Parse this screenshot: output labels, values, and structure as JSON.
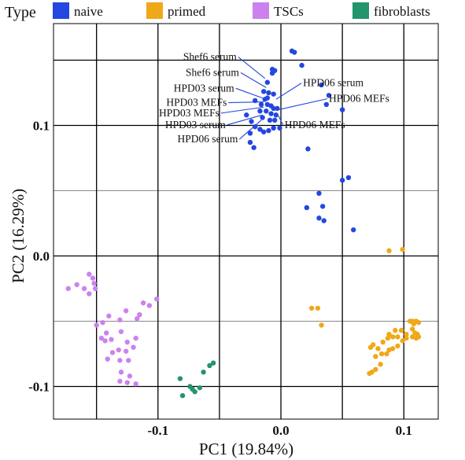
{
  "chart_data": {
    "type": "scatter",
    "title": "",
    "xlabel": "PC1 (19.84%)",
    "ylabel": "PC2 (16.29%)",
    "xlim": [
      -0.185,
      0.128
    ],
    "ylim": [
      -0.125,
      0.178
    ],
    "x_ticks": [
      {
        "value": -0.1,
        "label": "-0.1"
      },
      {
        "value": 0.0,
        "label": "0.0"
      },
      {
        "value": 0.1,
        "label": "0.1"
      }
    ],
    "y_ticks": [
      {
        "value": -0.1,
        "label": "-0.1"
      },
      {
        "value": 0.0,
        "label": "0.0"
      },
      {
        "value": 0.1,
        "label": "0.1"
      }
    ],
    "major_grid_x": [
      -0.15,
      -0.1,
      -0.05,
      0.0,
      0.05,
      0.1
    ],
    "major_grid_y": [
      -0.1,
      0.0,
      0.1,
      0.15
    ],
    "minor_grid_y": [
      -0.05,
      0.05
    ],
    "grid": true,
    "legend": {
      "title": "Type",
      "placement": "top",
      "entries": [
        {
          "label": "naive",
          "color": "#2347e0"
        },
        {
          "label": "primed",
          "color": "#f0a818"
        },
        {
          "label": "TSCs",
          "color": "#cc82ee"
        },
        {
          "label": "fibroblasts",
          "color": "#23956a"
        }
      ]
    },
    "series": [
      {
        "name": "naive",
        "color": "#2347e0",
        "points": [
          [
            0.009,
            0.157
          ],
          [
            0.011,
            0.156
          ],
          [
            -0.007,
            0.143
          ],
          [
            -0.005,
            0.142
          ],
          [
            -0.007,
            0.14
          ],
          [
            0.017,
            0.146
          ],
          [
            -0.011,
            0.133
          ],
          [
            -0.021,
            0.119
          ],
          [
            -0.014,
            0.126
          ],
          [
            -0.01,
            0.125
          ],
          [
            -0.013,
            0.12
          ],
          [
            -0.011,
            0.121
          ],
          [
            -0.006,
            0.124
          ],
          [
            -0.016,
            0.116
          ],
          [
            -0.011,
            0.116
          ],
          [
            -0.008,
            0.115
          ],
          [
            -0.006,
            0.113
          ],
          [
            -0.003,
            0.113
          ],
          [
            -0.017,
            0.111
          ],
          [
            -0.012,
            0.111
          ],
          [
            -0.008,
            0.109
          ],
          [
            -0.004,
            0.108
          ],
          [
            -0.015,
            0.106
          ],
          [
            -0.009,
            0.104
          ],
          [
            -0.005,
            0.104
          ],
          [
            -0.028,
            0.108
          ],
          [
            -0.024,
            0.103
          ],
          [
            -0.021,
            0.099
          ],
          [
            -0.017,
            0.097
          ],
          [
            -0.025,
            0.094
          ],
          [
            -0.014,
            0.095
          ],
          [
            -0.01,
            0.096
          ],
          [
            -0.006,
            0.098
          ],
          [
            -0.001,
            0.098
          ],
          [
            -0.025,
            0.087
          ],
          [
            -0.022,
            0.083
          ],
          [
            0.033,
            0.131
          ],
          [
            0.039,
            0.123
          ],
          [
            0.037,
            0.116
          ],
          [
            0.05,
            0.112
          ],
          [
            0.022,
            0.082
          ],
          [
            0.055,
            0.06
          ],
          [
            0.05,
            0.058
          ],
          [
            0.031,
            0.048
          ],
          [
            0.021,
            0.037
          ],
          [
            0.034,
            0.038
          ],
          [
            0.031,
            0.029
          ],
          [
            0.035,
            0.027
          ],
          [
            0.059,
            0.02
          ]
        ]
      },
      {
        "name": "primed",
        "color": "#f0a818",
        "points": [
          [
            0.088,
            0.004
          ],
          [
            0.099,
            0.005
          ],
          [
            0.025,
            -0.04
          ],
          [
            0.03,
            -0.04
          ],
          [
            0.033,
            -0.053
          ],
          [
            0.105,
            -0.05
          ],
          [
            0.107,
            -0.05
          ],
          [
            0.11,
            -0.05
          ],
          [
            0.108,
            -0.052
          ],
          [
            0.112,
            -0.051
          ],
          [
            0.107,
            -0.056
          ],
          [
            0.109,
            -0.059
          ],
          [
            0.111,
            -0.06
          ],
          [
            0.107,
            -0.062
          ],
          [
            0.11,
            -0.063
          ],
          [
            0.112,
            -0.062
          ],
          [
            0.093,
            -0.057
          ],
          [
            0.098,
            -0.057
          ],
          [
            0.102,
            -0.06
          ],
          [
            0.088,
            -0.06
          ],
          [
            0.091,
            -0.062
          ],
          [
            0.095,
            -0.062
          ],
          [
            0.099,
            -0.065
          ],
          [
            0.102,
            -0.063
          ],
          [
            0.087,
            -0.063
          ],
          [
            0.083,
            -0.066
          ],
          [
            0.095,
            -0.069
          ],
          [
            0.091,
            -0.071
          ],
          [
            0.088,
            -0.072
          ],
          [
            0.086,
            -0.075
          ],
          [
            0.082,
            -0.075
          ],
          [
            0.073,
            -0.07
          ],
          [
            0.075,
            -0.068
          ],
          [
            0.079,
            -0.071
          ],
          [
            0.077,
            -0.077
          ],
          [
            0.081,
            -0.083
          ],
          [
            0.077,
            -0.087
          ],
          [
            0.074,
            -0.089
          ],
          [
            0.072,
            -0.09
          ]
        ]
      },
      {
        "name": "TSCs",
        "color": "#cc82ee",
        "points": [
          [
            -0.156,
            -0.014
          ],
          [
            -0.153,
            -0.017
          ],
          [
            -0.166,
            -0.022
          ],
          [
            -0.16,
            -0.025
          ],
          [
            -0.152,
            -0.021
          ],
          [
            -0.156,
            -0.029
          ],
          [
            -0.151,
            -0.025
          ],
          [
            -0.173,
            -0.025
          ],
          [
            -0.101,
            -0.033
          ],
          [
            -0.107,
            -0.038
          ],
          [
            -0.112,
            -0.036
          ],
          [
            -0.115,
            -0.045
          ],
          [
            -0.117,
            -0.048
          ],
          [
            -0.126,
            -0.042
          ],
          [
            -0.131,
            -0.049
          ],
          [
            -0.14,
            -0.046
          ],
          [
            -0.145,
            -0.051
          ],
          [
            -0.15,
            -0.053
          ],
          [
            -0.13,
            -0.058
          ],
          [
            -0.142,
            -0.059
          ],
          [
            -0.138,
            -0.064
          ],
          [
            -0.146,
            -0.063
          ],
          [
            -0.143,
            -0.065
          ],
          [
            -0.118,
            -0.063
          ],
          [
            -0.125,
            -0.066
          ],
          [
            -0.12,
            -0.07
          ],
          [
            -0.132,
            -0.072
          ],
          [
            -0.126,
            -0.073
          ],
          [
            -0.137,
            -0.074
          ],
          [
            -0.141,
            -0.079
          ],
          [
            -0.131,
            -0.08
          ],
          [
            -0.124,
            -0.08
          ],
          [
            -0.13,
            -0.089
          ],
          [
            -0.123,
            -0.092
          ],
          [
            -0.118,
            -0.098
          ],
          [
            -0.125,
            -0.097
          ],
          [
            -0.131,
            -0.096
          ]
        ]
      },
      {
        "name": "fibroblasts",
        "color": "#23956a",
        "points": [
          [
            -0.055,
            -0.082
          ],
          [
            -0.058,
            -0.084
          ],
          [
            -0.063,
            -0.089
          ],
          [
            -0.082,
            -0.094
          ],
          [
            -0.074,
            -0.1
          ],
          [
            -0.072,
            -0.102
          ],
          [
            -0.07,
            -0.104
          ],
          [
            -0.066,
            -0.101
          ],
          [
            -0.08,
            -0.107
          ]
        ]
      }
    ],
    "annotations": [
      {
        "text": "Shef6 serum",
        "label_at": [
          -0.036,
          0.15
        ],
        "point": [
          -0.013,
          0.136
        ]
      },
      {
        "text": "Shef6 serum",
        "label_at": [
          -0.034,
          0.138
        ],
        "point": [
          -0.012,
          0.129
        ]
      },
      {
        "text": "HPD03 serum",
        "label_at": [
          -0.038,
          0.126
        ],
        "point": [
          -0.015,
          0.121
        ]
      },
      {
        "text": "HPD03 MEFs",
        "label_at": [
          -0.044,
          0.115
        ],
        "point": [
          -0.014,
          0.118
        ]
      },
      {
        "text": "HPD03 MEFs",
        "label_at": [
          -0.05,
          0.107
        ],
        "point": [
          -0.014,
          0.114
        ]
      },
      {
        "text": "HPD03 serum",
        "label_at": [
          -0.045,
          0.098
        ],
        "point": [
          -0.015,
          0.108
        ]
      },
      {
        "text": "HPD06 serum",
        "label_at": [
          -0.035,
          0.087
        ],
        "point": [
          -0.016,
          0.104
        ]
      },
      {
        "text": "HPD06 serum",
        "label_at": [
          0.018,
          0.13
        ],
        "point": [
          -0.004,
          0.12
        ]
      },
      {
        "text": "HPD06 MEFs",
        "label_at": [
          0.039,
          0.118
        ],
        "point": [
          -0.002,
          0.112
        ]
      },
      {
        "text": "HPD06 MEFs",
        "label_at": [
          0.003,
          0.098
        ],
        "point": [
          -0.003,
          0.109
        ]
      }
    ]
  }
}
